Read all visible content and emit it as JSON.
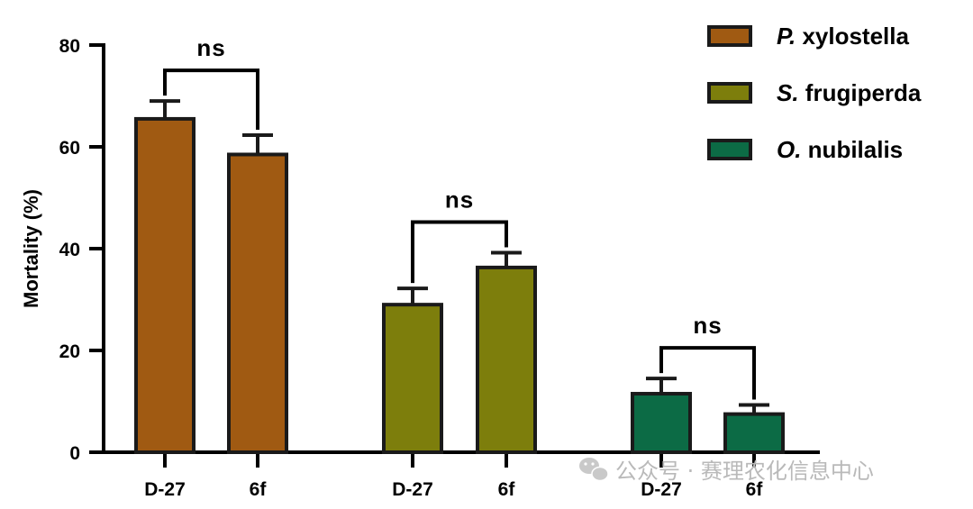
{
  "chart_data": {
    "type": "bar",
    "ylabel": "Mortality (%)",
    "xlabel": "",
    "ylim": [
      0,
      80
    ],
    "yticks": [
      0,
      20,
      40,
      60,
      80
    ],
    "grid": false,
    "legend_position": "top-right",
    "groups": [
      {
        "series": "P. xylostella",
        "categories": [
          "D-27",
          "6f"
        ],
        "values": [
          65.5,
          58.5
        ],
        "errors": [
          3.5,
          3.8
        ],
        "significance": "ns"
      },
      {
        "series": "S. frugiperda",
        "categories": [
          "D-27",
          "6f"
        ],
        "values": [
          29,
          36.3
        ],
        "errors": [
          3.2,
          2.9
        ],
        "significance": "ns"
      },
      {
        "series": "O. nubilalis",
        "categories": [
          "D-27",
          "6f"
        ],
        "values": [
          11.5,
          7.5
        ],
        "errors": [
          3.0,
          1.8
        ],
        "significance": "ns"
      }
    ],
    "legend": [
      {
        "genus_abbr": "P.",
        "species": " xylostella",
        "color": "#a05a12"
      },
      {
        "genus_abbr": "S.",
        "species": " frugiperda",
        "color": "#7d7e0c"
      },
      {
        "genus_abbr": "O.",
        "species": " nubilalis",
        "color": "#0c6b45"
      }
    ]
  },
  "watermark": {
    "text": "公众号 · 赛理农化信息中心",
    "icon": "wechat-icon"
  }
}
